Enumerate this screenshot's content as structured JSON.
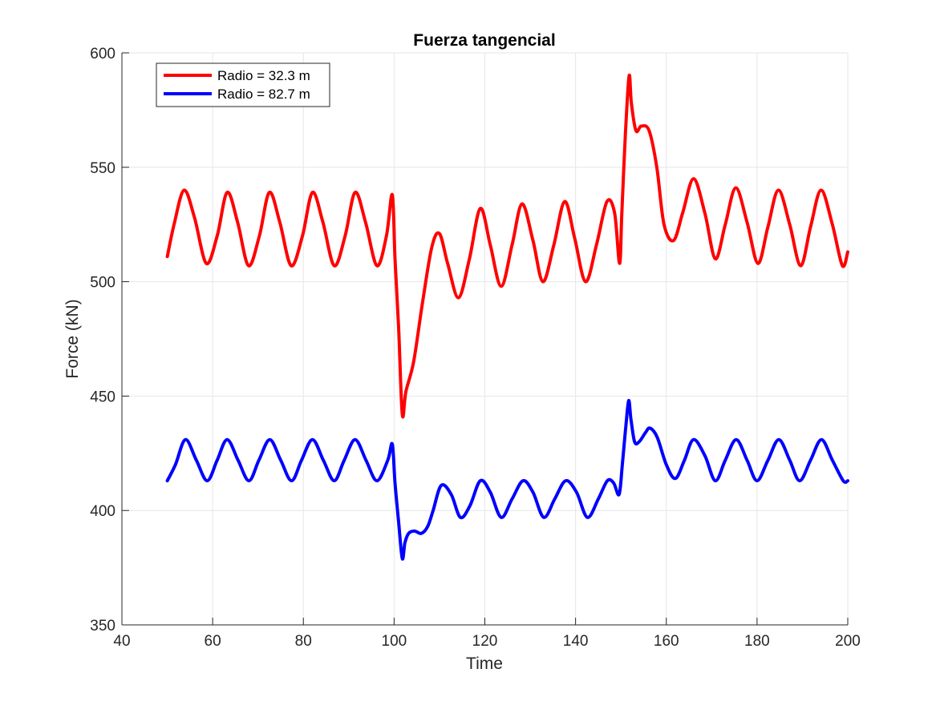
{
  "chart_data": {
    "type": "line",
    "title": "Fuerza tangencial",
    "xlabel": "Time",
    "ylabel": "Force (kN)",
    "xlim": [
      40,
      200
    ],
    "ylim": [
      350,
      600
    ],
    "xticks": [
      40,
      60,
      80,
      100,
      120,
      140,
      160,
      180,
      200
    ],
    "yticks": [
      350,
      400,
      450,
      500,
      550,
      600
    ],
    "grid": true,
    "legend_position": "top-left",
    "series": [
      {
        "name": "Radio = 32.3 m",
        "color": "#ff0000",
        "x": [
          50,
          51.5,
          53.7,
          56.0,
          58.6,
          61.0,
          63.2,
          65.5,
          67.9,
          70.3,
          72.5,
          74.8,
          77.3,
          79.8,
          82.0,
          84.3,
          86.8,
          89.2,
          91.4,
          93.7,
          96.2,
          98.3,
          99.6,
          100.2,
          101.0,
          101.8,
          102.6,
          104.3,
          106.2,
          108.3,
          110.0,
          111.8,
          114.2,
          116.6,
          119.0,
          121.2,
          123.6,
          126.0,
          128.2,
          130.6,
          132.8,
          135.2,
          137.6,
          139.8,
          142.2,
          144.6,
          146.9,
          148.6,
          149.7,
          150.2,
          151.0,
          151.8,
          152.3,
          153.3,
          154.5,
          156.2,
          157.9,
          159.5,
          161.6,
          163.6,
          166.0,
          168.5,
          170.8,
          173.0,
          175.3,
          177.8,
          180.2,
          182.4,
          184.7,
          187.2,
          189.6,
          191.8,
          194.1,
          196.6,
          198.8,
          200
        ],
        "y": [
          511,
          525,
          540,
          528,
          508,
          520,
          539,
          526,
          507,
          520,
          539,
          526,
          507,
          520,
          539,
          526,
          507,
          520,
          539,
          526,
          507,
          520,
          538,
          510,
          480,
          442,
          452,
          465,
          490,
          515,
          521,
          508,
          493,
          510,
          532,
          516,
          498,
          516,
          534,
          518,
          500,
          516,
          535,
          519,
          500,
          516,
          535,
          530,
          508,
          530,
          565,
          590,
          578,
          566,
          568,
          566,
          550,
          525,
          518,
          530,
          545,
          530,
          510,
          525,
          541,
          526,
          508,
          524,
          540,
          525,
          507,
          524,
          540,
          525,
          507,
          513
        ]
      },
      {
        "name": "Radio = 82.7 m",
        "color": "#0000ff",
        "x": [
          50,
          51.8,
          54.0,
          56.4,
          58.8,
          61.0,
          63.2,
          65.6,
          68.0,
          70.2,
          72.6,
          75.0,
          77.4,
          79.6,
          82.0,
          84.4,
          86.8,
          89.0,
          91.4,
          93.8,
          96.2,
          98.6,
          99.6,
          100.2,
          101.0,
          101.8,
          102.4,
          103.2,
          104.5,
          106.0,
          107.4,
          108.6,
          110.4,
          112.6,
          114.6,
          116.7,
          119.0,
          121.2,
          123.6,
          126.0,
          128.4,
          130.6,
          133.0,
          135.4,
          137.8,
          140.2,
          142.6,
          145.0,
          147.0,
          148.4,
          149.6,
          150.3,
          151.0,
          151.7,
          152.2,
          153.0,
          154.0,
          155.4,
          156.4,
          158.0,
          160.0,
          162.0,
          164.0,
          166.0,
          168.5,
          170.8,
          173.0,
          175.4,
          177.8,
          180.0,
          182.4,
          184.8,
          187.2,
          189.4,
          191.8,
          194.2,
          196.6,
          199.0,
          200
        ],
        "y": [
          413,
          420,
          431,
          422,
          413,
          422,
          431,
          422,
          413,
          422,
          431,
          422,
          413,
          422,
          431,
          422,
          413,
          422,
          431,
          422,
          413,
          422,
          429,
          412,
          395,
          379,
          386,
          390,
          391,
          390,
          393,
          400,
          411,
          407,
          397,
          402,
          413,
          408,
          397,
          405,
          413,
          408,
          397,
          405,
          413,
          408,
          397,
          405,
          413,
          412,
          407,
          420,
          435,
          448,
          440,
          430,
          430,
          434,
          436,
          432,
          420,
          414,
          422,
          431,
          424,
          413,
          422,
          431,
          422,
          413,
          422,
          431,
          422,
          413,
          422,
          431,
          422,
          413,
          413
        ]
      }
    ]
  }
}
